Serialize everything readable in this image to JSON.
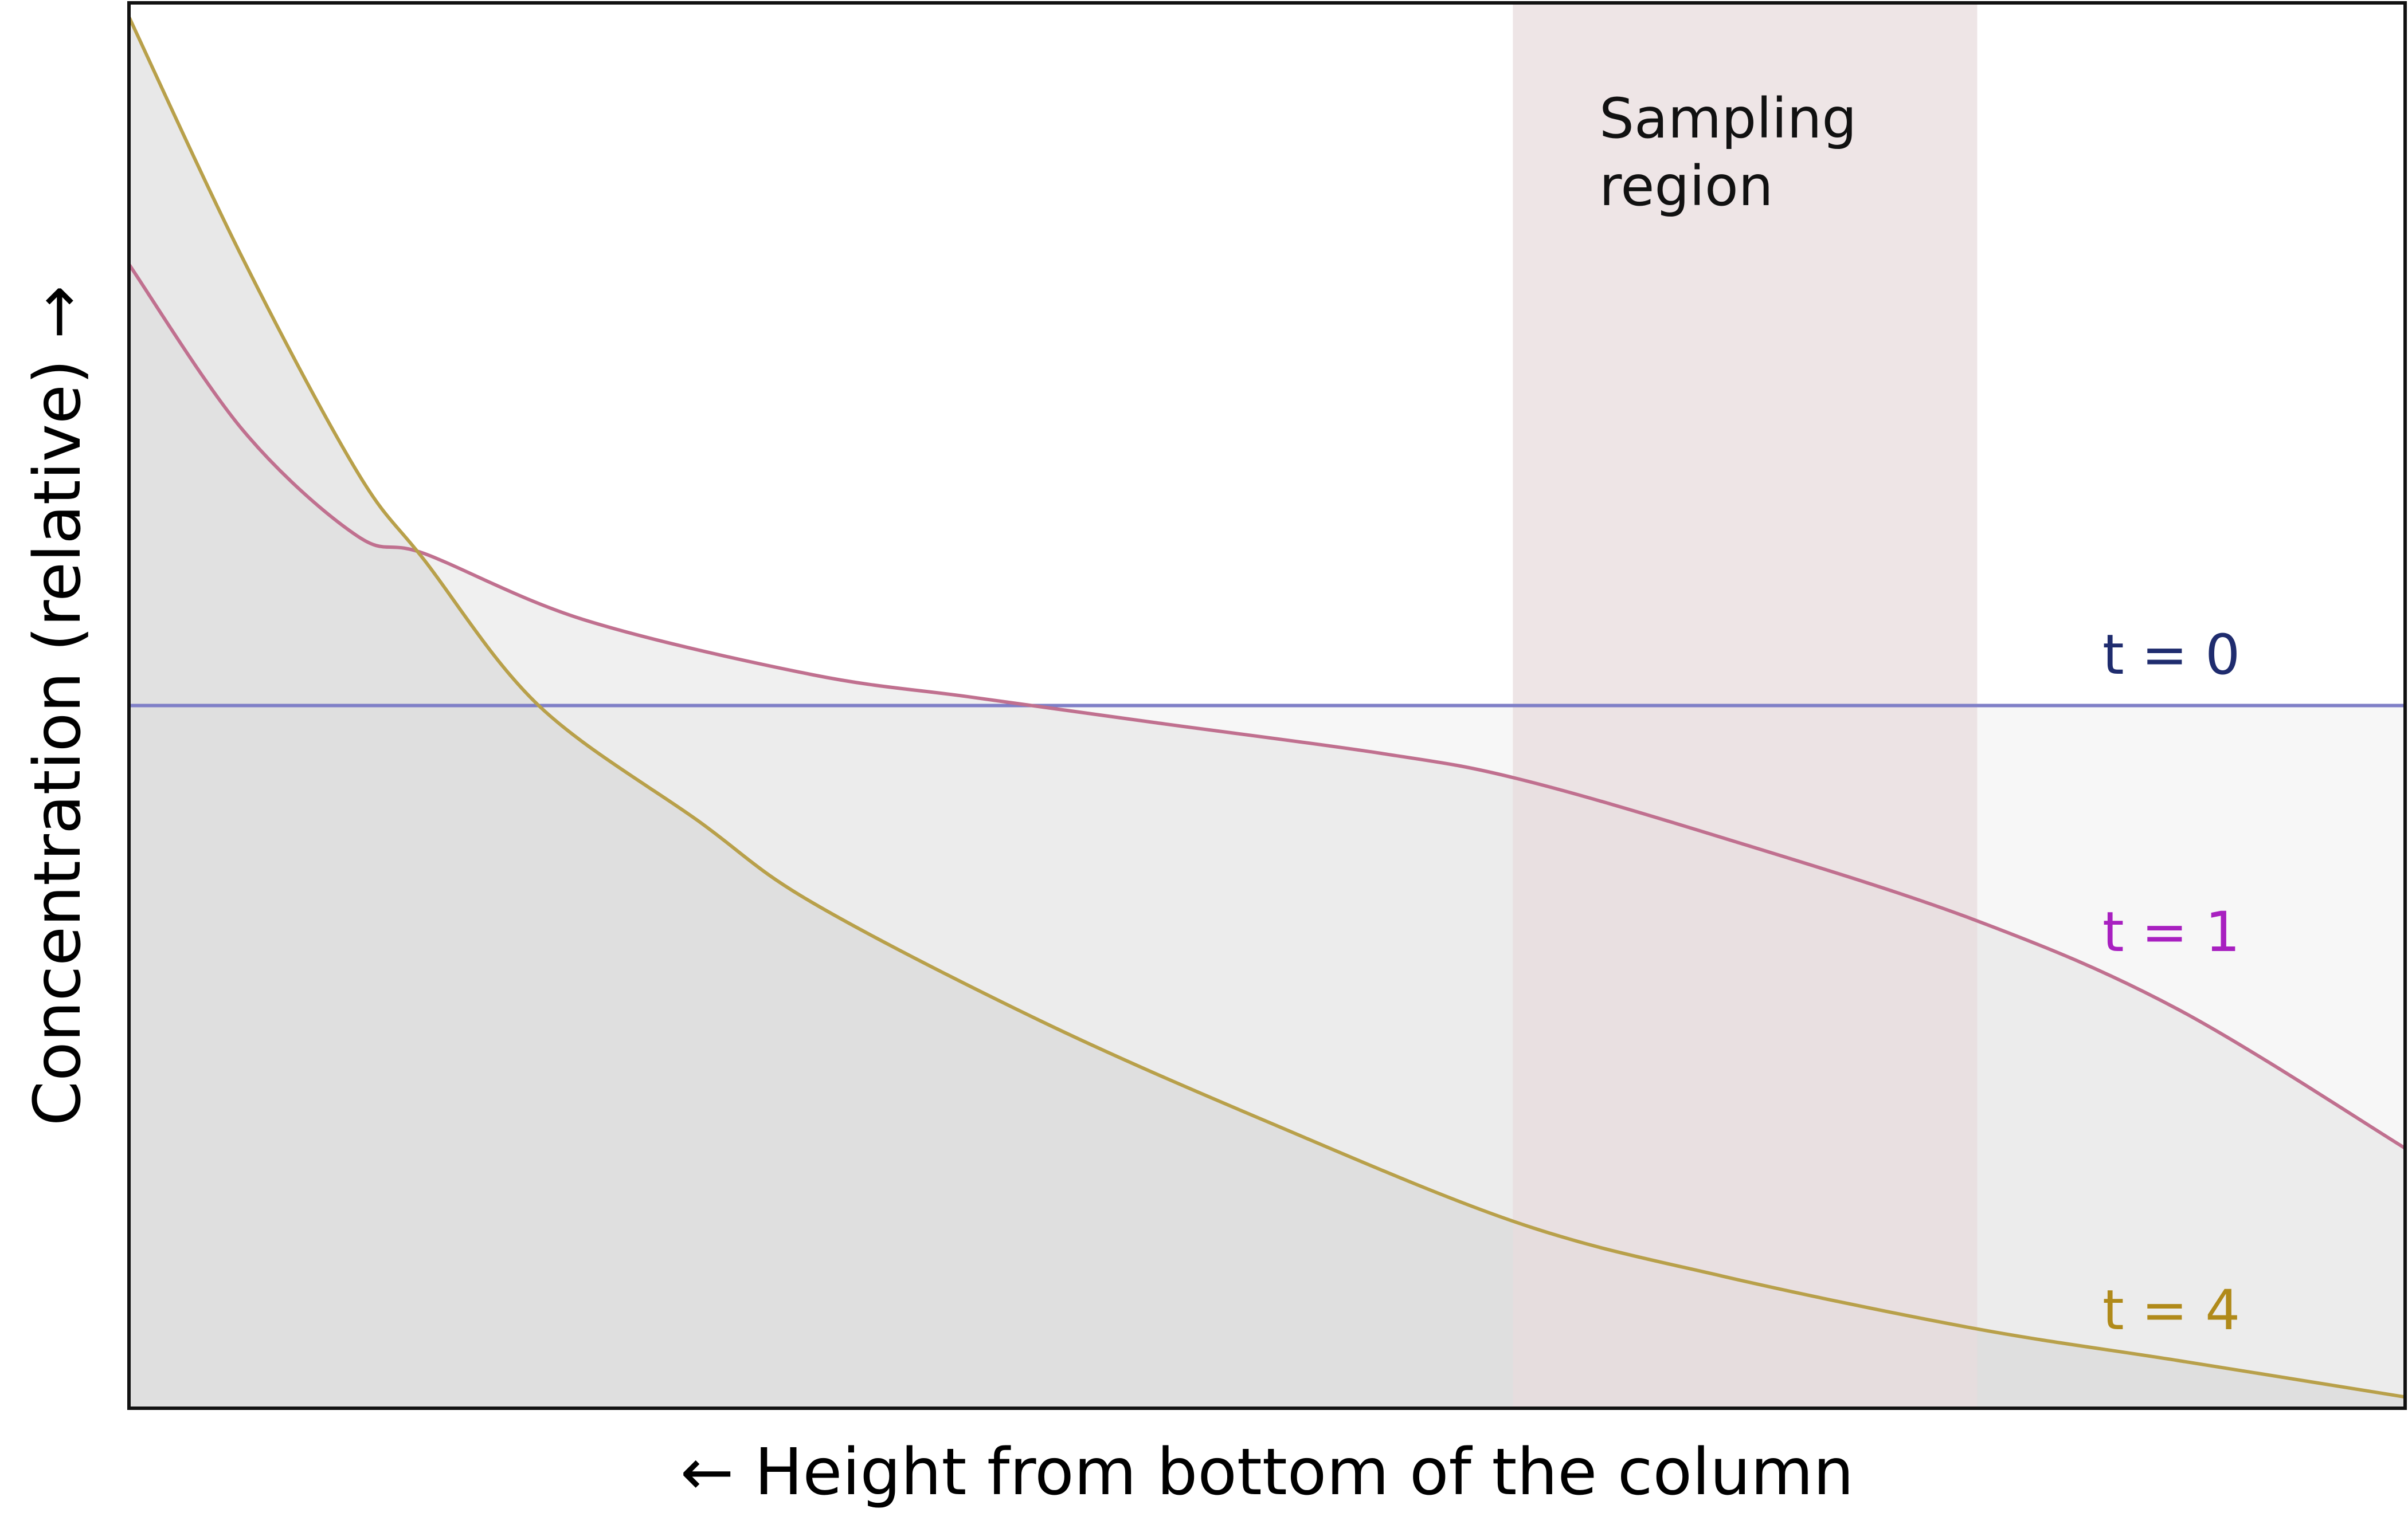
{
  "chart_data": {
    "type": "area",
    "title": "",
    "xlabel": "← Height from bottom of the column",
    "ylabel": "Concentration (relative) →",
    "xlim": [
      0,
      1
    ],
    "ylim": [
      0,
      1
    ],
    "grid": false,
    "legend": "inline-right",
    "annotation": {
      "text_lines": [
        "Sampling",
        "region"
      ],
      "x_range": [
        0.608,
        0.812
      ],
      "color": "#e8dcdd"
    },
    "series": [
      {
        "name": "t = 0",
        "color": "#1f2c6e",
        "line_color": "#7f7fc7",
        "fill": "#f0f0f0",
        "x": [
          0.0,
          0.25,
          0.5,
          0.75,
          1.0
        ],
        "y": [
          0.5,
          0.5,
          0.5,
          0.5,
          0.5
        ]
      },
      {
        "name": "t = 1",
        "color": "#a820c0",
        "line_color": "#c0708f",
        "fill": "#e4e4e4",
        "x": [
          0.0,
          0.05,
          0.1,
          0.13,
          0.2,
          0.3,
          0.37,
          0.45,
          0.55,
          0.61,
          0.7,
          0.81,
          0.9,
          1.0
        ],
        "y": [
          0.814,
          0.696,
          0.621,
          0.608,
          0.561,
          0.522,
          0.506,
          0.488,
          0.466,
          0.448,
          0.406,
          0.348,
          0.284,
          0.185
        ]
      },
      {
        "name": "t = 4",
        "color": "#b08a1a",
        "line_color": "#b8a04a",
        "fill": "#d6d6d6",
        "x": [
          0.0,
          0.05,
          0.1,
          0.13,
          0.18,
          0.25,
          0.3,
          0.4,
          0.5,
          0.61,
          0.7,
          0.81,
          0.9,
          1.0
        ],
        "y": [
          0.99,
          0.818,
          0.667,
          0.603,
          0.5,
          0.418,
          0.36,
          0.276,
          0.204,
          0.132,
          0.094,
          0.057,
          0.034,
          0.008
        ]
      }
    ]
  }
}
